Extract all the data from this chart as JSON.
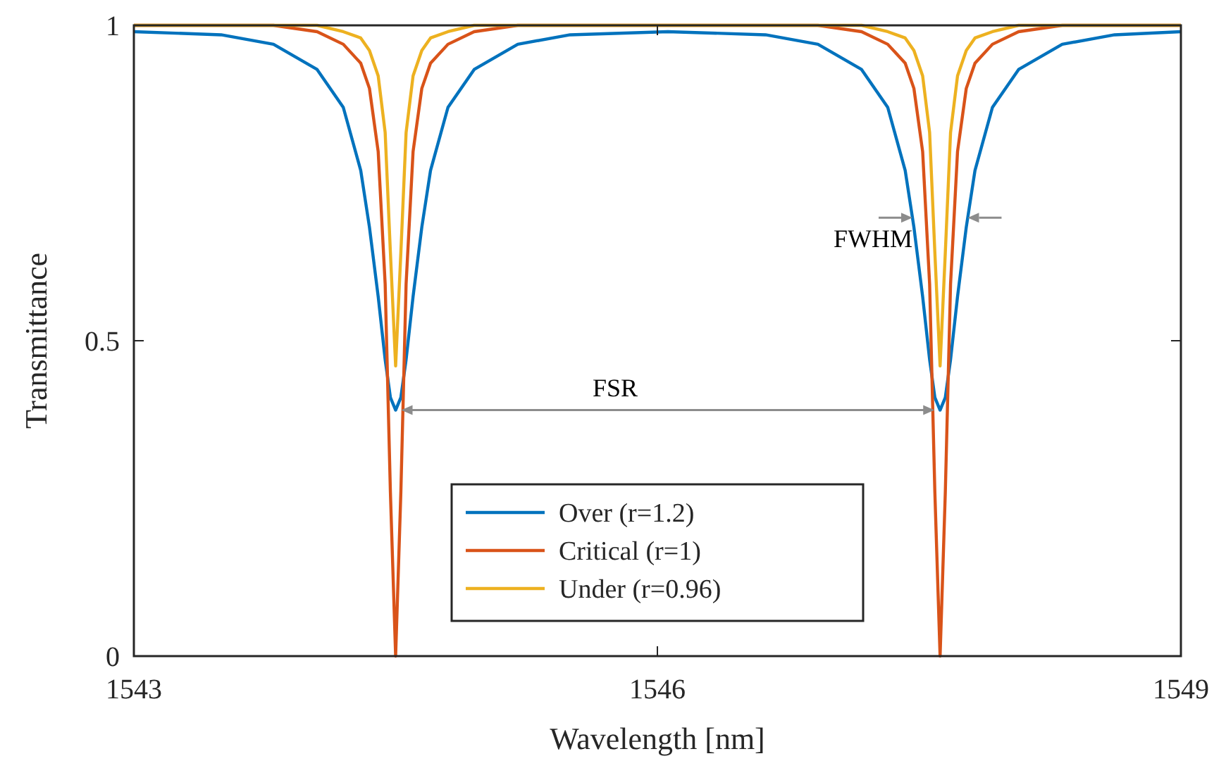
{
  "chart_data": {
    "type": "line",
    "xlabel": "Wavelength [nm]",
    "ylabel": "Transmittance",
    "xlim": [
      1543,
      1549
    ],
    "xticks": [
      1543,
      1546,
      1549
    ],
    "ylim": [
      0,
      1
    ],
    "yticks": [
      0,
      0.5,
      1
    ],
    "grid": false,
    "legend": "bottom",
    "line_style": "solid",
    "marker": "none",
    "x": [
      1543,
      1543.5,
      1543.8,
      1544.05,
      1544.2,
      1544.3,
      1544.35,
      1544.4,
      1544.44,
      1544.47,
      1544.5,
      1544.53,
      1544.56,
      1544.6,
      1544.65,
      1544.7,
      1544.8,
      1544.95,
      1545.2,
      1545.5,
      1546.06,
      1546.62,
      1546.92,
      1547.17,
      1547.32,
      1547.42,
      1547.47,
      1547.52,
      1547.56,
      1547.59,
      1547.62,
      1547.65,
      1547.68,
      1547.72,
      1547.77,
      1547.82,
      1547.92,
      1548.07,
      1548.32,
      1548.62,
      1549
    ],
    "series": [
      {
        "name": "Over (r=1.2)",
        "color": "#0072bd",
        "values": [
          0.99,
          0.985,
          0.97,
          0.93,
          0.87,
          0.77,
          0.68,
          0.57,
          0.47,
          0.41,
          0.39,
          0.41,
          0.47,
          0.57,
          0.68,
          0.77,
          0.87,
          0.93,
          0.97,
          0.985,
          0.99,
          0.985,
          0.97,
          0.93,
          0.87,
          0.77,
          0.68,
          0.57,
          0.47,
          0.41,
          0.39,
          0.41,
          0.47,
          0.57,
          0.68,
          0.77,
          0.87,
          0.93,
          0.97,
          0.985,
          0.99
        ]
      },
      {
        "name": "Critical (r=1)",
        "color": "#d95319",
        "values": [
          1,
          1,
          1,
          0.99,
          0.97,
          0.94,
          0.9,
          0.8,
          0.59,
          0.26,
          0,
          0.26,
          0.59,
          0.8,
          0.9,
          0.94,
          0.97,
          0.99,
          1,
          1,
          1,
          1,
          1,
          0.99,
          0.97,
          0.94,
          0.9,
          0.8,
          0.59,
          0.26,
          0,
          0.26,
          0.59,
          0.8,
          0.9,
          0.94,
          0.97,
          0.99,
          1,
          1,
          1
        ]
      },
      {
        "name": "Under (r=0.96)",
        "color": "#edb120",
        "values": [
          1,
          1,
          1,
          1,
          0.99,
          0.98,
          0.96,
          0.92,
          0.83,
          0.64,
          0.46,
          0.64,
          0.83,
          0.92,
          0.96,
          0.98,
          0.99,
          1,
          1,
          1,
          1,
          1,
          1,
          1,
          0.99,
          0.98,
          0.96,
          0.92,
          0.83,
          0.64,
          0.46,
          0.64,
          0.83,
          0.92,
          0.96,
          0.98,
          0.99,
          1,
          1,
          1,
          1
        ]
      }
    ],
    "annotations": [
      "FSR",
      "FWHM"
    ]
  }
}
